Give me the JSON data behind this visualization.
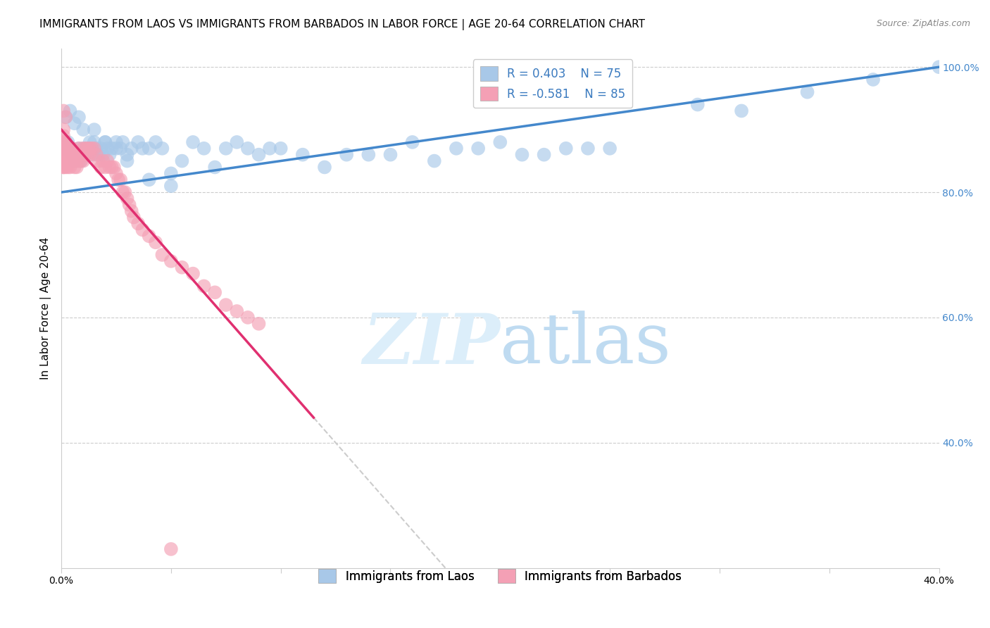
{
  "title": "IMMIGRANTS FROM LAOS VS IMMIGRANTS FROM BARBADOS IN LABOR FORCE | AGE 20-64 CORRELATION CHART",
  "source": "Source: ZipAtlas.com",
  "ylabel": "In Labor Force | Age 20-64",
  "xmin": 0.0,
  "xmax": 0.4,
  "ymin": 0.2,
  "ymax": 1.03,
  "xticks": [
    0.0,
    0.05,
    0.1,
    0.15,
    0.2,
    0.25,
    0.3,
    0.35,
    0.4
  ],
  "yticks": [
    0.4,
    0.6,
    0.8,
    1.0
  ],
  "ytick_labels": [
    "40.0%",
    "60.0%",
    "80.0%",
    "100.0%"
  ],
  "legend_blue_r_val": "0.403",
  "legend_blue_n_val": "75",
  "legend_pink_r_val": "-0.581",
  "legend_pink_n_val": "85",
  "blue_color": "#a8c8e8",
  "pink_color": "#f4a0b5",
  "blue_line_color": "#4488cc",
  "pink_line_color": "#e03070",
  "watermark_zip_color": "#dceefa",
  "watermark_atlas_color": "#b8d8f0",
  "legend_label_blue": "Immigrants from Laos",
  "legend_label_pink": "Immigrants from Barbados",
  "blue_scatter_x": [
    0.001,
    0.002,
    0.003,
    0.004,
    0.005,
    0.006,
    0.007,
    0.008,
    0.009,
    0.01,
    0.011,
    0.012,
    0.013,
    0.014,
    0.015,
    0.016,
    0.017,
    0.018,
    0.019,
    0.02,
    0.021,
    0.022,
    0.023,
    0.025,
    0.027,
    0.028,
    0.03,
    0.032,
    0.035,
    0.037,
    0.04,
    0.043,
    0.046,
    0.05,
    0.055,
    0.06,
    0.065,
    0.07,
    0.075,
    0.08,
    0.085,
    0.09,
    0.095,
    0.1,
    0.11,
    0.12,
    0.13,
    0.14,
    0.15,
    0.16,
    0.17,
    0.18,
    0.19,
    0.2,
    0.21,
    0.22,
    0.23,
    0.24,
    0.25,
    0.29,
    0.31,
    0.34,
    0.37,
    0.4,
    0.002,
    0.004,
    0.006,
    0.008,
    0.01,
    0.015,
    0.02,
    0.025,
    0.03,
    0.04,
    0.05
  ],
  "blue_scatter_y": [
    0.87,
    0.88,
    0.88,
    0.87,
    0.86,
    0.85,
    0.86,
    0.87,
    0.85,
    0.87,
    0.86,
    0.87,
    0.88,
    0.86,
    0.88,
    0.87,
    0.86,
    0.87,
    0.86,
    0.88,
    0.87,
    0.86,
    0.87,
    0.88,
    0.87,
    0.88,
    0.86,
    0.87,
    0.88,
    0.87,
    0.87,
    0.88,
    0.87,
    0.83,
    0.85,
    0.88,
    0.87,
    0.84,
    0.87,
    0.88,
    0.87,
    0.86,
    0.87,
    0.87,
    0.86,
    0.84,
    0.86,
    0.86,
    0.86,
    0.88,
    0.85,
    0.87,
    0.87,
    0.88,
    0.86,
    0.86,
    0.87,
    0.87,
    0.87,
    0.94,
    0.93,
    0.96,
    0.98,
    1.0,
    0.92,
    0.93,
    0.91,
    0.92,
    0.9,
    0.9,
    0.88,
    0.87,
    0.85,
    0.82,
    0.81
  ],
  "pink_scatter_x": [
    0.001,
    0.001,
    0.001,
    0.001,
    0.001,
    0.001,
    0.001,
    0.001,
    0.001,
    0.001,
    0.001,
    0.001,
    0.001,
    0.002,
    0.002,
    0.002,
    0.002,
    0.002,
    0.002,
    0.003,
    0.003,
    0.003,
    0.003,
    0.004,
    0.004,
    0.004,
    0.004,
    0.005,
    0.005,
    0.005,
    0.006,
    0.006,
    0.006,
    0.007,
    0.007,
    0.007,
    0.008,
    0.008,
    0.008,
    0.009,
    0.009,
    0.01,
    0.01,
    0.01,
    0.011,
    0.011,
    0.012,
    0.012,
    0.013,
    0.013,
    0.014,
    0.015,
    0.016,
    0.017,
    0.018,
    0.019,
    0.02,
    0.021,
    0.022,
    0.023,
    0.024,
    0.025,
    0.026,
    0.027,
    0.028,
    0.029,
    0.03,
    0.031,
    0.032,
    0.033,
    0.035,
    0.037,
    0.04,
    0.043,
    0.046,
    0.05,
    0.055,
    0.06,
    0.065,
    0.07,
    0.075,
    0.08,
    0.085,
    0.09,
    0.05
  ],
  "pink_scatter_y": [
    0.88,
    0.87,
    0.86,
    0.85,
    0.84,
    0.9,
    0.89,
    0.88,
    0.87,
    0.86,
    0.85,
    0.84,
    0.93,
    0.88,
    0.87,
    0.86,
    0.85,
    0.84,
    0.92,
    0.87,
    0.86,
    0.85,
    0.84,
    0.87,
    0.86,
    0.85,
    0.84,
    0.87,
    0.86,
    0.85,
    0.86,
    0.85,
    0.84,
    0.86,
    0.85,
    0.84,
    0.87,
    0.86,
    0.85,
    0.86,
    0.85,
    0.87,
    0.86,
    0.85,
    0.87,
    0.86,
    0.87,
    0.86,
    0.87,
    0.86,
    0.87,
    0.87,
    0.86,
    0.85,
    0.84,
    0.85,
    0.84,
    0.85,
    0.84,
    0.84,
    0.84,
    0.83,
    0.82,
    0.82,
    0.8,
    0.8,
    0.79,
    0.78,
    0.77,
    0.76,
    0.75,
    0.74,
    0.73,
    0.72,
    0.7,
    0.69,
    0.68,
    0.67,
    0.65,
    0.64,
    0.62,
    0.61,
    0.6,
    0.59,
    0.23
  ],
  "blue_line_x0": 0.0,
  "blue_line_x1": 0.4,
  "blue_line_y0": 0.8,
  "blue_line_y1": 1.0,
  "pink_line_x0": 0.0,
  "pink_line_y0": 0.9,
  "pink_line_solid_x1": 0.115,
  "pink_line_dashed_x1": 0.31,
  "pink_line_slope": -4.0,
  "background_color": "#ffffff",
  "grid_color": "#cccccc",
  "axis_color": "#cccccc",
  "title_fontsize": 11,
  "label_fontsize": 11,
  "tick_fontsize": 10,
  "legend_fontsize": 12,
  "source_fontsize": 9
}
